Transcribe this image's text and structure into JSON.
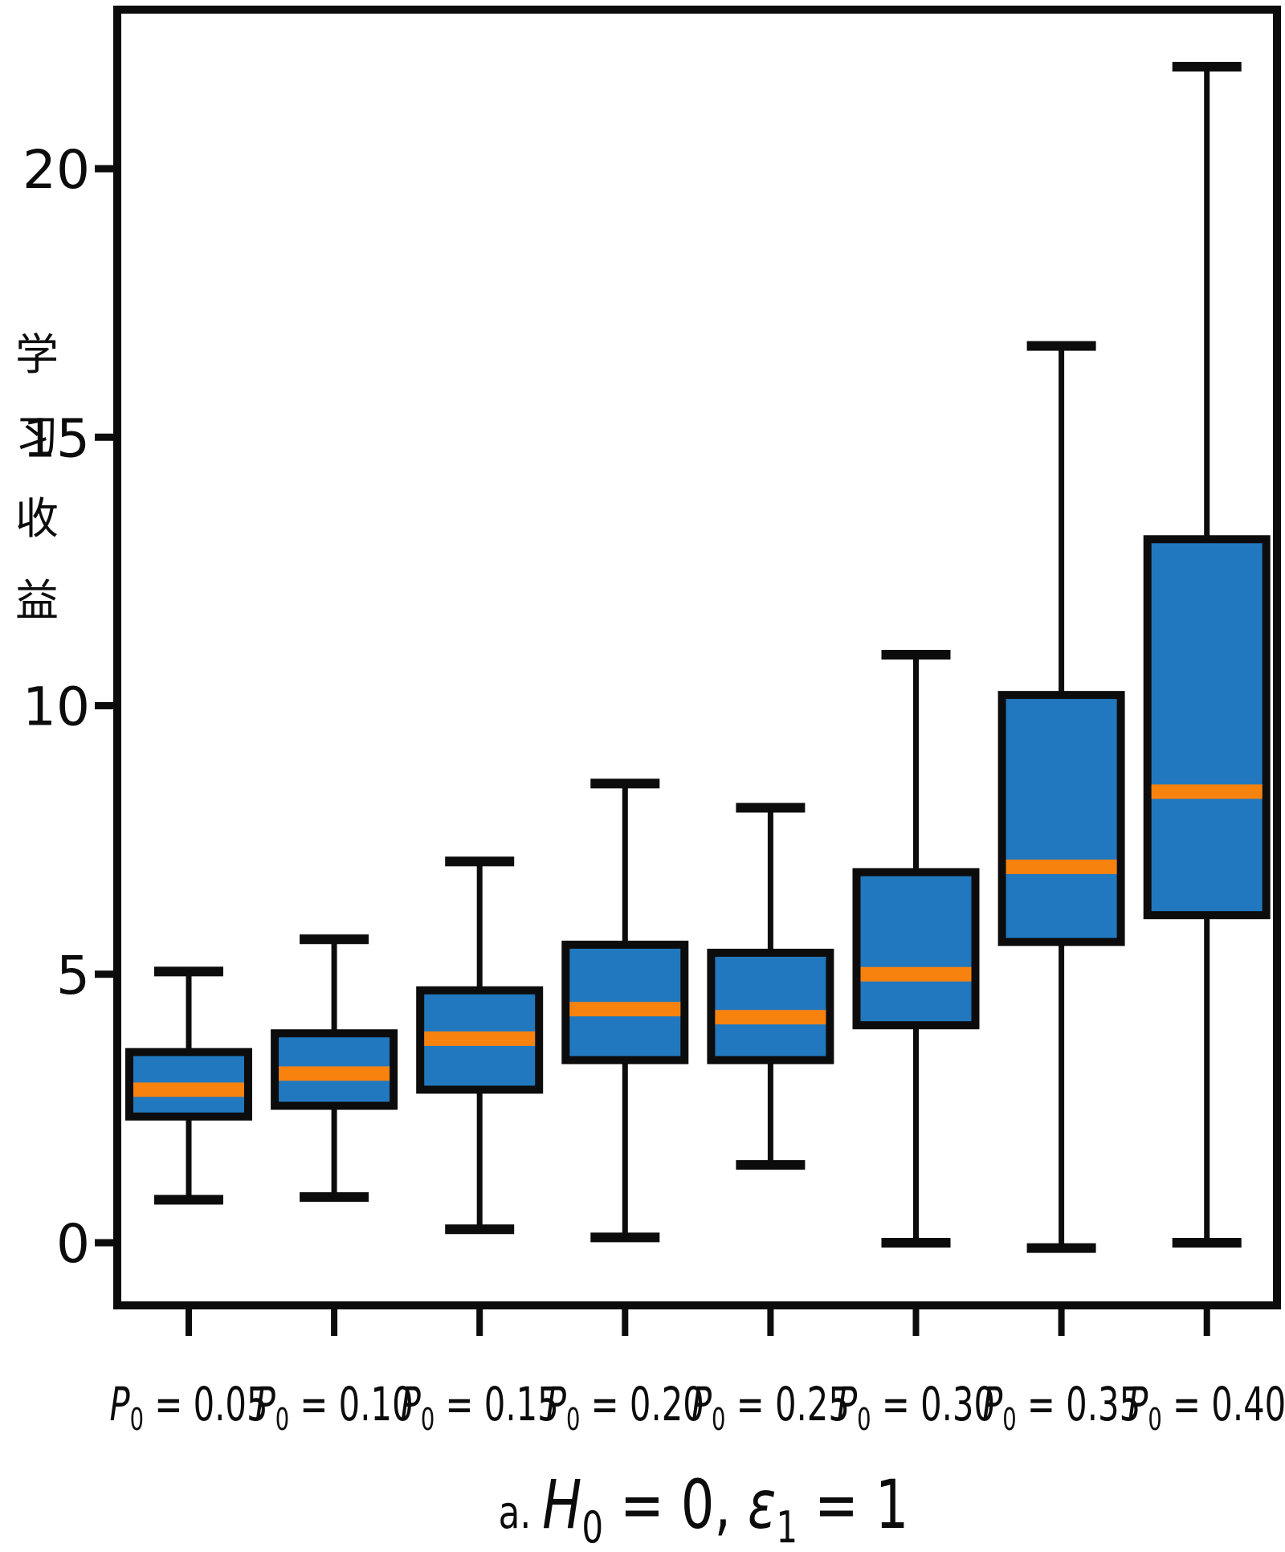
{
  "figure": {
    "background": "#ffffff",
    "caption": {
      "prefix": "a.",
      "parts": [
        {
          "text": "H",
          "italic": true
        },
        {
          "text": "0",
          "sub": true
        },
        {
          "text": " = 0, "
        },
        {
          "text": "ε",
          "italic": true
        },
        {
          "text": "1",
          "sub": true
        },
        {
          "text": " = 1"
        }
      ],
      "display": "a. H₀ = 0, ε₁ = 1"
    }
  },
  "chart_data": {
    "type": "box",
    "title": "",
    "xlabel": "",
    "ylabel": "学习收益",
    "ylabel_chars": [
      "学",
      "习",
      "收",
      "益"
    ],
    "yticks": [
      0,
      5,
      10,
      15,
      20
    ],
    "ylim": [
      -1.2,
      23
    ],
    "grid": false,
    "legend": "none",
    "xlabel_prefix": {
      "var": "P",
      "sub": "0",
      "equals": " = "
    },
    "categories": [
      "P₀ = 0.05",
      "P₀ = 0.10",
      "P₀ = 0.15",
      "P₀ = 0.20",
      "P₀ = 0.25",
      "P₀ = 0.30",
      "P₀ = 0.35",
      "P₀ = 0.40"
    ],
    "boxes": [
      {
        "value": "0.05",
        "whisker_low": 0.8,
        "q1": 2.35,
        "median": 2.85,
        "q3": 3.55,
        "whisker_high": 5.05
      },
      {
        "value": "0.10",
        "whisker_low": 0.85,
        "q1": 2.55,
        "median": 3.15,
        "q3": 3.9,
        "whisker_high": 5.65
      },
      {
        "value": "0.15",
        "whisker_low": 0.25,
        "q1": 2.85,
        "median": 3.8,
        "q3": 4.7,
        "whisker_high": 7.1
      },
      {
        "value": "0.20",
        "whisker_low": 0.1,
        "q1": 3.4,
        "median": 4.35,
        "q3": 5.55,
        "whisker_high": 8.55
      },
      {
        "value": "0.25",
        "whisker_low": 1.45,
        "q1": 3.4,
        "median": 4.2,
        "q3": 5.4,
        "whisker_high": 8.1
      },
      {
        "value": "0.30",
        "whisker_low": 0.0,
        "q1": 4.05,
        "median": 5.0,
        "q3": 6.9,
        "whisker_high": 10.95
      },
      {
        "value": "0.35",
        "whisker_low": -0.1,
        "q1": 5.6,
        "median": 7.0,
        "q3": 10.2,
        "whisker_high": 16.7
      },
      {
        "value": "0.40",
        "whisker_low": 0.0,
        "q1": 6.1,
        "median": 8.4,
        "q3": 13.1,
        "whisker_high": 21.9
      }
    ],
    "colors": {
      "box_fill": "#2178be",
      "median_line": "#f8820e",
      "line": "#0c0c0c",
      "background": "#ffffff"
    }
  }
}
